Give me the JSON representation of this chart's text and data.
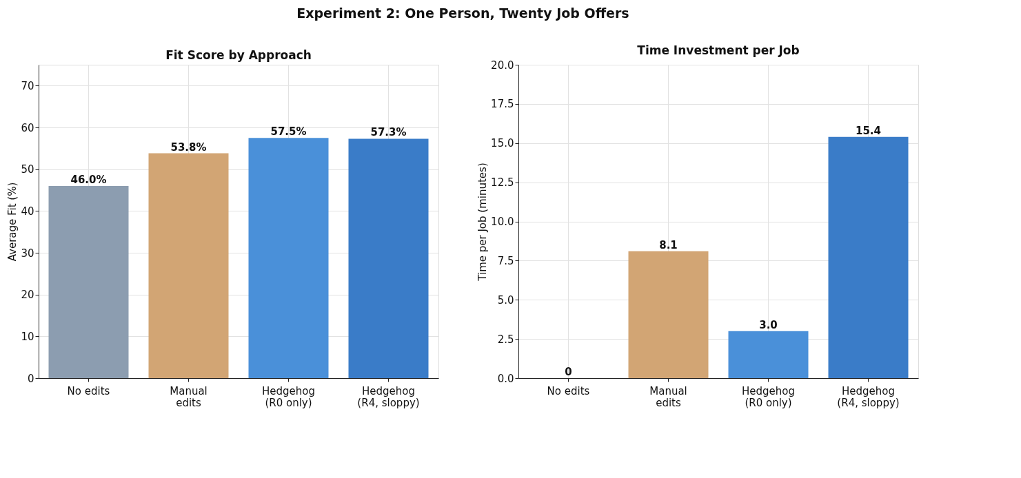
{
  "chart_data": [
    {
      "type": "bar",
      "title": "Fit Score by Approach",
      "ylabel": "Average Fit (%)",
      "categories": [
        "No edits",
        "Manual\nedits",
        "Hedgehog\n(R0 only)",
        "Hedgehog\n(R4, sloppy)"
      ],
      "values": [
        46.0,
        53.8,
        57.5,
        57.3
      ],
      "colors": [
        "#8c9db0",
        "#d2a574",
        "#4a90d9",
        "#3a7cc8"
      ],
      "value_labels": [
        "46.0%",
        "53.8%",
        "57.5%",
        "57.3%"
      ],
      "ylim": [
        0,
        75
      ],
      "yticks": [
        0,
        10,
        20,
        30,
        40,
        50,
        60,
        70
      ],
      "grid": true,
      "annotations": [
        "Experiment 2: One Person, Twenty Job Offers"
      ]
    },
    {
      "type": "bar",
      "title": "Time Investment per Job",
      "ylabel": "Time per Job (minutes)",
      "categories": [
        "No edits",
        "Manual\nedits",
        "Hedgehog\n(R0 only)",
        "Hedgehog\n(R4, sloppy)"
      ],
      "values": [
        0,
        8.1,
        3.0,
        15.4
      ],
      "colors": [
        "#8c9db0",
        "#d2a574",
        "#4a90d9",
        "#3a7cc8"
      ],
      "value_labels": [
        "0",
        "8.1",
        "3.0",
        "15.4"
      ],
      "ylim": [
        0,
        20
      ],
      "yticks": [
        {
          "value": 0,
          "label": "0.0"
        },
        {
          "value": 2.5,
          "label": "2.5"
        },
        {
          "value": 5,
          "label": "5.0"
        },
        {
          "value": 7.5,
          "label": "7.5"
        },
        {
          "value": 10,
          "label": "10.0"
        },
        {
          "value": 12.5,
          "label": "12.5"
        },
        {
          "value": 15,
          "label": "15.0"
        },
        {
          "value": 17.5,
          "label": "17.5"
        },
        {
          "value": 20,
          "label": "20.0"
        }
      ],
      "grid": true
    }
  ]
}
